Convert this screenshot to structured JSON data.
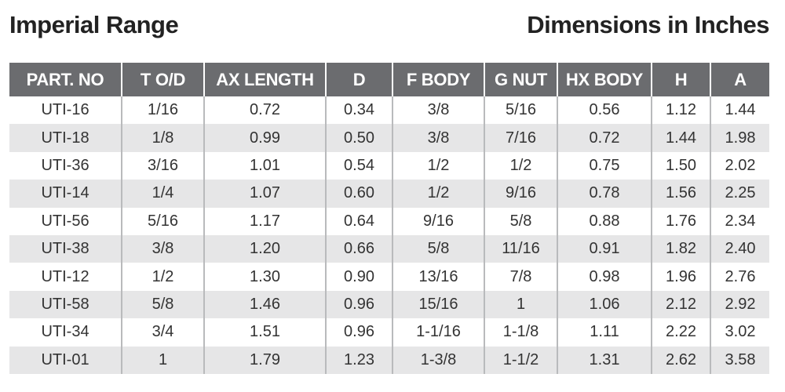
{
  "header": {
    "title": "Imperial Range",
    "subtitle": "Dimensions in Inches"
  },
  "table": {
    "columns": [
      "PART. NO",
      "T O/D",
      "AX LENGTH",
      "D",
      "F BODY",
      "G NUT",
      "HX BODY",
      "H",
      "A"
    ],
    "rows": [
      [
        "UTI-16",
        "1/16",
        "0.72",
        "0.34",
        "3/8",
        "5/16",
        "0.56",
        "1.12",
        "1.44"
      ],
      [
        "UTI-18",
        "1/8",
        "0.99",
        "0.50",
        "3/8",
        "7/16",
        "0.72",
        "1.44",
        "1.98"
      ],
      [
        "UTI-36",
        "3/16",
        "1.01",
        "0.54",
        "1/2",
        "1/2",
        "0.75",
        "1.50",
        "2.02"
      ],
      [
        "UTI-14",
        "1/4",
        "1.07",
        "0.60",
        "1/2",
        "9/16",
        "0.78",
        "1.56",
        "2.25"
      ],
      [
        "UTI-56",
        "5/16",
        "1.17",
        "0.64",
        "9/16",
        "5/8",
        "0.88",
        "1.76",
        "2.34"
      ],
      [
        "UTI-38",
        "3/8",
        "1.20",
        "0.66",
        "5/8",
        "11/16",
        "0.91",
        "1.82",
        "2.40"
      ],
      [
        "UTI-12",
        "1/2",
        "1.30",
        "0.90",
        "13/16",
        "7/8",
        "0.98",
        "1.96",
        "2.76"
      ],
      [
        "UTI-58",
        "5/8",
        "1.46",
        "0.96",
        "15/16",
        "1",
        "1.06",
        "2.12",
        "2.92"
      ],
      [
        "UTI-34",
        "3/4",
        "1.51",
        "0.96",
        "1-1/16",
        "1-1/8",
        "1.11",
        "2.22",
        "3.02"
      ],
      [
        "UTI-01",
        "1",
        "1.79",
        "1.23",
        "1-3/8",
        "1-1/2",
        "1.31",
        "2.62",
        "3.58"
      ]
    ]
  }
}
